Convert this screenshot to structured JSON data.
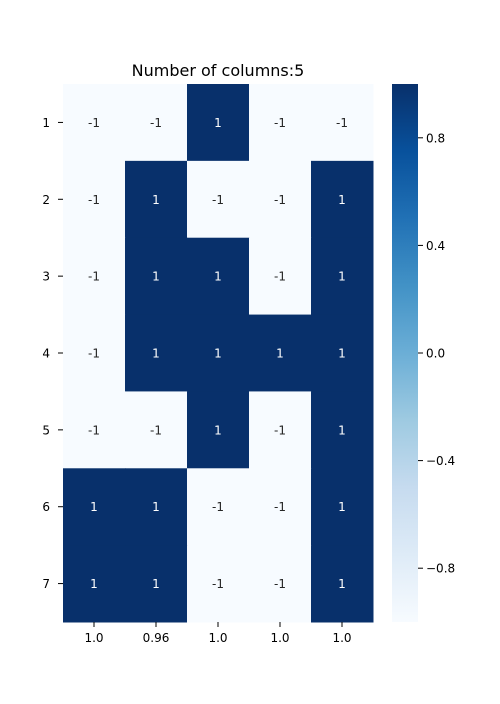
{
  "chart_data": {
    "type": "heatmap",
    "title": "Number of columns:5",
    "xlabel": "",
    "ylabel": "",
    "x_tick_labels": [
      "1.0",
      "0.96",
      "1.0",
      "1.0",
      "1.0"
    ],
    "y_tick_labels": [
      "1",
      "2",
      "3",
      "4",
      "5",
      "6",
      "7"
    ],
    "values": [
      [
        -1,
        -1,
        1,
        -1,
        -1
      ],
      [
        -1,
        1,
        -1,
        -1,
        1
      ],
      [
        -1,
        1,
        1,
        -1,
        1
      ],
      [
        -1,
        1,
        1,
        1,
        1
      ],
      [
        -1,
        -1,
        1,
        -1,
        1
      ],
      [
        1,
        1,
        -1,
        -1,
        1
      ],
      [
        1,
        1,
        -1,
        -1,
        1
      ]
    ],
    "colormap": "Blues",
    "color_low": "#f7fbff",
    "color_high": "#08306b",
    "vmin": -1,
    "vmax": 1,
    "colorbar_ticks": [
      "0.8",
      "0.4",
      "0.0",
      "−0.4",
      "−0.8"
    ],
    "colorbar_tick_values": [
      0.8,
      0.4,
      0.0,
      -0.4,
      -0.8
    ],
    "grid": false
  }
}
